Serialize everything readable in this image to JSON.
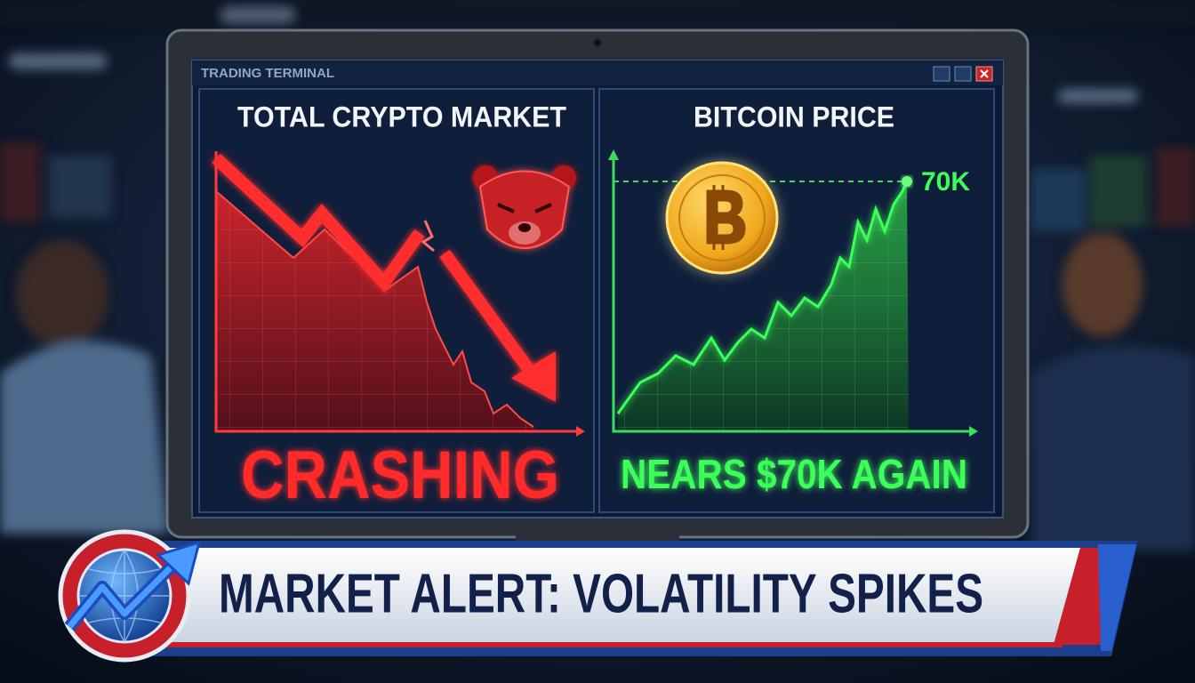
{
  "window": {
    "title": "TRADING TERMINAL"
  },
  "panels": [
    {
      "title": "TOTAL CRYPTO MARKET",
      "status": "CRASHING"
    },
    {
      "title": "BITCOIN PRICE",
      "price_label": "70K",
      "status": "NEARS $70K AGAIN"
    }
  ],
  "banner": {
    "text": "MARKET ALERT: VOLATILITY SPIKES"
  }
}
